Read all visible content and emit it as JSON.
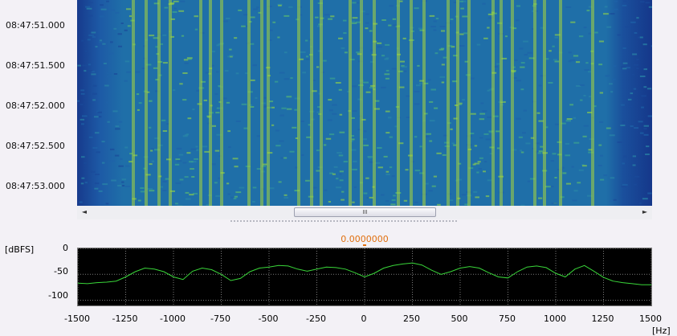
{
  "waterfall": {
    "time_labels": [
      "08:47:51.000",
      "08:47:51.500",
      "08:47:52.000",
      "08:47:52.500",
      "08:47:53.000"
    ]
  },
  "scrollbar": {
    "left_arrow": "◄",
    "right_arrow": "►",
    "thumb_grip": "III"
  },
  "spectrum": {
    "unit_label": "[dBFS]",
    "offset_value": "0.0000000",
    "x_unit": "[Hz]",
    "trace_color": "#39d639",
    "marker_color": "#e07010"
  },
  "chart_data": {
    "type": "line",
    "xlabel": "[Hz]",
    "ylabel": "[dBFS]",
    "xlim": [
      -1500,
      1500
    ],
    "ylim": [
      -110,
      0
    ],
    "x_ticks": [
      -1500,
      -1250,
      -1000,
      -750,
      -500,
      -250,
      0,
      250,
      500,
      750,
      1000,
      1250,
      1500
    ],
    "y_ticks": [
      0,
      -50,
      -100
    ],
    "grid": true,
    "series": [
      {
        "x": [
          -1500,
          -1450,
          -1400,
          -1350,
          -1300,
          -1250,
          -1200,
          -1150,
          -1100,
          -1050,
          -1000,
          -950,
          -900,
          -850,
          -800,
          -750,
          -700,
          -650,
          -600,
          -550,
          -500,
          -450,
          -400,
          -350,
          -300,
          -250,
          -200,
          -150,
          -100,
          -50,
          0,
          50,
          100,
          150,
          200,
          250,
          300,
          350,
          400,
          450,
          500,
          550,
          600,
          650,
          700,
          750,
          800,
          850,
          900,
          950,
          1000,
          1050,
          1100,
          1150,
          1200,
          1250,
          1300,
          1350,
          1400,
          1450,
          1500
        ],
        "values": [
          -67,
          -68,
          -66,
          -65,
          -63,
          -55,
          -45,
          -38,
          -40,
          -45,
          -55,
          -60,
          -44,
          -38,
          -41,
          -50,
          -62,
          -58,
          -45,
          -38,
          -36,
          -33,
          -34,
          -40,
          -44,
          -40,
          -36,
          -37,
          -40,
          -47,
          -55,
          -48,
          -38,
          -33,
          -30,
          -28,
          -32,
          -42,
          -50,
          -45,
          -38,
          -35,
          -38,
          -47,
          -55,
          -57,
          -45,
          -36,
          -34,
          -37,
          -48,
          -55,
          -40,
          -33,
          -44,
          -56,
          -63,
          -66,
          -68,
          -70,
          -70
        ]
      }
    ]
  }
}
